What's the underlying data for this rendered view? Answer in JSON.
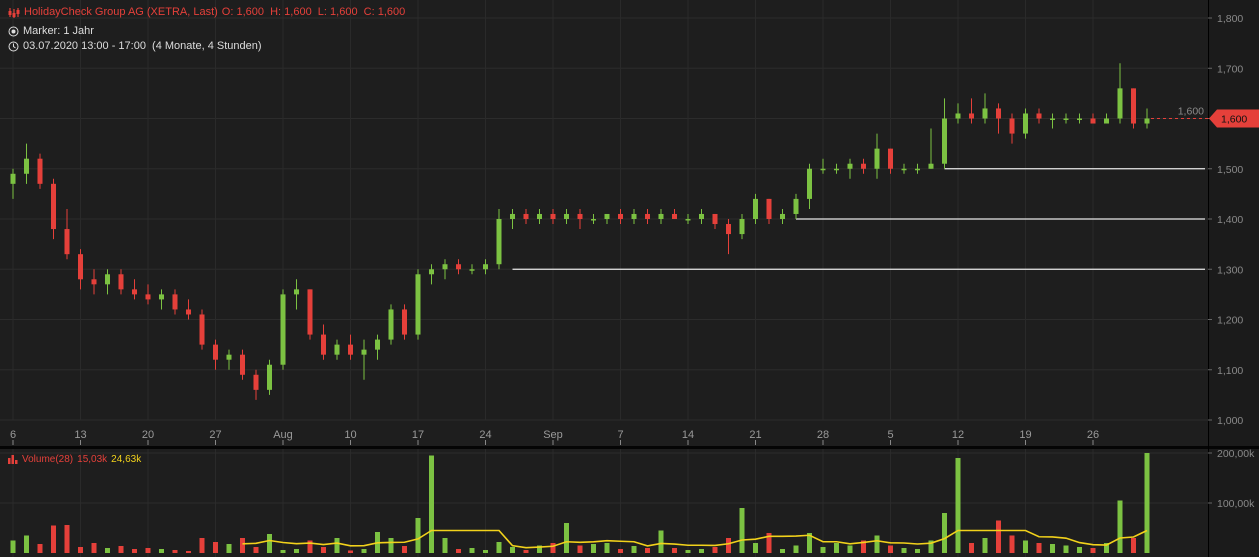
{
  "header": {
    "instrument": "HolidayCheck Group AG (XETRA, Last)",
    "ohlc": "O: 1,600  H: 1,600  L: 1,600  C: 1,600",
    "marker": "Marker: 1 Jahr",
    "range": "03.07.2020 13:00 - 17:00  (4 Monate, 4 Stunden)",
    "icons": [
      "candlestick-icon",
      "radio-marker-icon",
      "clock-icon"
    ]
  },
  "volume_legend": {
    "label": "Volume(28)",
    "value": "15,03k",
    "ma_value": "24,63k"
  },
  "colors": {
    "up": "#7cc242",
    "down": "#e5403a",
    "ma": "#f2d21b",
    "last_price": "#e5403a",
    "background": "#1e1e1e"
  },
  "chart_data": [
    {
      "type": "candlestick",
      "ylim": [
        1.0,
        1.8
      ],
      "yticks": [
        "1,800",
        "1,700",
        "1,600",
        "1,500",
        "1,400",
        "1,300",
        "1,200",
        "1,100",
        "1,000"
      ],
      "xticks": [
        "6",
        "13",
        "20",
        "27",
        "Aug",
        "10",
        "17",
        "24",
        "Sep",
        "7",
        "14",
        "21",
        "28",
        "5",
        "12",
        "19",
        "26"
      ],
      "last_price_label": "1,600",
      "last_price": 1.6,
      "horizontal_lines": [
        1.3,
        1.4,
        1.5
      ],
      "grid": true,
      "ohlcv": [
        [
          1.47,
          1.5,
          1.44,
          1.49,
          25
        ],
        [
          1.49,
          1.55,
          1.47,
          1.52,
          35
        ],
        [
          1.52,
          1.53,
          1.46,
          1.47,
          18
        ],
        [
          1.47,
          1.48,
          1.36,
          1.38,
          55
        ],
        [
          1.38,
          1.42,
          1.32,
          1.33,
          56
        ],
        [
          1.33,
          1.34,
          1.26,
          1.28,
          12
        ],
        [
          1.28,
          1.3,
          1.25,
          1.27,
          20
        ],
        [
          1.27,
          1.3,
          1.25,
          1.29,
          10
        ],
        [
          1.29,
          1.3,
          1.25,
          1.26,
          14
        ],
        [
          1.26,
          1.28,
          1.24,
          1.25,
          8
        ],
        [
          1.25,
          1.27,
          1.23,
          1.24,
          10
        ],
        [
          1.24,
          1.26,
          1.22,
          1.25,
          8
        ],
        [
          1.25,
          1.26,
          1.21,
          1.22,
          6
        ],
        [
          1.22,
          1.24,
          1.2,
          1.21,
          4
        ],
        [
          1.21,
          1.22,
          1.14,
          1.15,
          30
        ],
        [
          1.15,
          1.16,
          1.1,
          1.12,
          22
        ],
        [
          1.12,
          1.14,
          1.1,
          1.13,
          18
        ],
        [
          1.13,
          1.14,
          1.08,
          1.09,
          30
        ],
        [
          1.09,
          1.1,
          1.04,
          1.06,
          12
        ],
        [
          1.06,
          1.12,
          1.05,
          1.11,
          38
        ],
        [
          1.11,
          1.26,
          1.1,
          1.25,
          6
        ],
        [
          1.25,
          1.28,
          1.22,
          1.26,
          8
        ],
        [
          1.26,
          1.26,
          1.16,
          1.17,
          25
        ],
        [
          1.17,
          1.19,
          1.12,
          1.13,
          12
        ],
        [
          1.13,
          1.16,
          1.12,
          1.15,
          30
        ],
        [
          1.15,
          1.17,
          1.12,
          1.13,
          5
        ],
        [
          1.13,
          1.16,
          1.08,
          1.14,
          8
        ],
        [
          1.14,
          1.17,
          1.12,
          1.16,
          42
        ],
        [
          1.16,
          1.23,
          1.15,
          1.22,
          30
        ],
        [
          1.22,
          1.23,
          1.16,
          1.17,
          14
        ],
        [
          1.17,
          1.3,
          1.16,
          1.29,
          70
        ],
        [
          1.29,
          1.31,
          1.27,
          1.3,
          195
        ],
        [
          1.3,
          1.32,
          1.28,
          1.31,
          30
        ],
        [
          1.31,
          1.32,
          1.29,
          1.3,
          8
        ],
        [
          1.3,
          1.31,
          1.29,
          1.3,
          10
        ],
        [
          1.3,
          1.32,
          1.29,
          1.31,
          6
        ],
        [
          1.31,
          1.42,
          1.3,
          1.4,
          22
        ],
        [
          1.4,
          1.42,
          1.38,
          1.41,
          12
        ],
        [
          1.41,
          1.42,
          1.39,
          1.4,
          6
        ],
        [
          1.4,
          1.42,
          1.39,
          1.41,
          15
        ],
        [
          1.41,
          1.42,
          1.39,
          1.4,
          20
        ],
        [
          1.4,
          1.42,
          1.39,
          1.41,
          60
        ],
        [
          1.41,
          1.42,
          1.38,
          1.4,
          15
        ],
        [
          1.4,
          1.41,
          1.39,
          1.4,
          18
        ],
        [
          1.4,
          1.41,
          1.39,
          1.41,
          20
        ],
        [
          1.41,
          1.42,
          1.39,
          1.4,
          8
        ],
        [
          1.4,
          1.42,
          1.39,
          1.41,
          14
        ],
        [
          1.41,
          1.42,
          1.39,
          1.4,
          10
        ],
        [
          1.4,
          1.42,
          1.39,
          1.41,
          45
        ],
        [
          1.41,
          1.42,
          1.4,
          1.4,
          10
        ],
        [
          1.4,
          1.41,
          1.39,
          1.4,
          6
        ],
        [
          1.4,
          1.42,
          1.39,
          1.41,
          8
        ],
        [
          1.41,
          1.41,
          1.38,
          1.39,
          12
        ],
        [
          1.39,
          1.4,
          1.33,
          1.37,
          30
        ],
        [
          1.37,
          1.41,
          1.36,
          1.4,
          90
        ],
        [
          1.4,
          1.45,
          1.39,
          1.44,
          20
        ],
        [
          1.44,
          1.44,
          1.39,
          1.4,
          40
        ],
        [
          1.4,
          1.42,
          1.39,
          1.41,
          8
        ],
        [
          1.41,
          1.45,
          1.4,
          1.44,
          15
        ],
        [
          1.44,
          1.51,
          1.42,
          1.5,
          40
        ],
        [
          1.5,
          1.52,
          1.49,
          1.5,
          12
        ],
        [
          1.5,
          1.51,
          1.49,
          1.5,
          20
        ],
        [
          1.5,
          1.52,
          1.48,
          1.51,
          15
        ],
        [
          1.51,
          1.52,
          1.49,
          1.5,
          25
        ],
        [
          1.5,
          1.57,
          1.48,
          1.54,
          35
        ],
        [
          1.54,
          1.54,
          1.49,
          1.5,
          15
        ],
        [
          1.5,
          1.51,
          1.49,
          1.5,
          10
        ],
        [
          1.5,
          1.51,
          1.49,
          1.5,
          8
        ],
        [
          1.5,
          1.58,
          1.5,
          1.51,
          25
        ],
        [
          1.51,
          1.64,
          1.5,
          1.6,
          80
        ],
        [
          1.6,
          1.63,
          1.59,
          1.61,
          190
        ],
        [
          1.61,
          1.64,
          1.59,
          1.6,
          20
        ],
        [
          1.6,
          1.65,
          1.59,
          1.62,
          30
        ],
        [
          1.62,
          1.63,
          1.57,
          1.6,
          65
        ],
        [
          1.6,
          1.61,
          1.55,
          1.57,
          35
        ],
        [
          1.57,
          1.62,
          1.56,
          1.61,
          25
        ],
        [
          1.61,
          1.62,
          1.59,
          1.6,
          20
        ],
        [
          1.6,
          1.61,
          1.58,
          1.6,
          18
        ],
        [
          1.6,
          1.61,
          1.59,
          1.6,
          15
        ],
        [
          1.6,
          1.61,
          1.59,
          1.6,
          12
        ],
        [
          1.6,
          1.61,
          1.59,
          1.59,
          10
        ],
        [
          1.59,
          1.61,
          1.59,
          1.6,
          20
        ],
        [
          1.6,
          1.71,
          1.59,
          1.66,
          105
        ],
        [
          1.66,
          1.66,
          1.58,
          1.59,
          30
        ],
        [
          1.59,
          1.62,
          1.58,
          1.6,
          200
        ]
      ]
    },
    {
      "type": "bar",
      "title": "Volume(28)",
      "ylim": [
        0,
        200000
      ],
      "yticks": [
        "200,00k",
        "100,00k"
      ],
      "ma_period": 28
    }
  ]
}
